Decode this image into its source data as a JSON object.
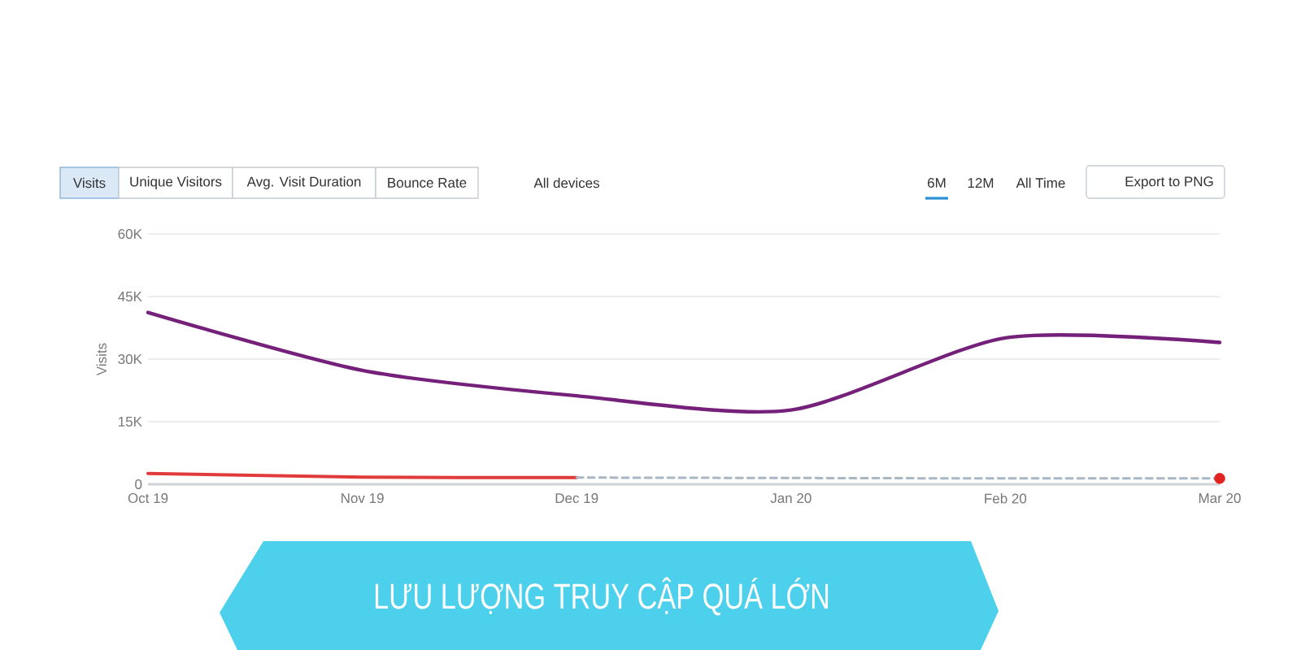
{
  "chart_data": {
    "type": "line",
    "title": "LƯU LƯỢNG TRUY CẬP QUÁ LỚN",
    "ylabel": "Visits",
    "categories": [
      "Oct 19",
      "Nov 19",
      "Dec 19",
      "Jan 20",
      "Feb 20",
      "Mar 20"
    ],
    "series": [
      {
        "color": "#75207a",
        "values": [
          41200,
          27300,
          21200,
          17800,
          35100,
          34000
        ]
      },
      {
        "color": "#e03a3a",
        "values": [
          2600,
          1700,
          1600,
          null,
          null,
          null
        ]
      },
      {
        "color": "#a9b6c4",
        "line_style": "dashed",
        "values": [
          null,
          null,
          1600,
          1500,
          1400,
          1400
        ]
      },
      {
        "type": "scatter",
        "color": "#e02424",
        "marker": "circle",
        "values": [
          null,
          null,
          null,
          null,
          null,
          1400
        ]
      }
    ],
    "ylim": [
      0,
      60000
    ],
    "yticks": [
      0,
      {
        "value": 15000,
        "label": "15K"
      },
      {
        "value": 30000,
        "label": "30K"
      },
      {
        "value": 45000,
        "label": "45K"
      },
      {
        "value": 60000,
        "label": "60K"
      }
    ],
    "grid": "y",
    "annotations": [
      "Visits",
      "Unique Visitors",
      "Avg. Visit Duration",
      "Bounce Rate",
      "All devices",
      "6M",
      "12M",
      "All Time",
      "Export to PNG"
    ]
  }
}
